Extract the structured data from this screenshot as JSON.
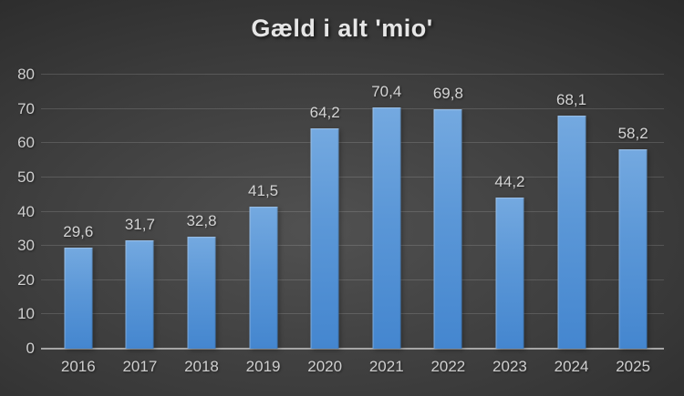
{
  "chart_data": {
    "type": "bar",
    "title": "Gæld i alt 'mio'",
    "categories": [
      "2016",
      "2017",
      "2018",
      "2019",
      "2020",
      "2021",
      "2022",
      "2023",
      "2024",
      "2025"
    ],
    "values": [
      29.6,
      31.7,
      32.8,
      41.5,
      64.2,
      70.4,
      69.8,
      44.2,
      68.1,
      58.2
    ],
    "data_labels": [
      "29,6",
      "31,7",
      "32,8",
      "41,5",
      "64,2",
      "70,4",
      "69,8",
      "44,2",
      "68,1",
      "58,2"
    ],
    "xlabel": "",
    "ylabel": "",
    "ylim": [
      0,
      80
    ],
    "yticks": [
      0,
      10,
      20,
      30,
      40,
      50,
      60,
      70,
      80
    ],
    "ytick_labels": [
      "0",
      "10",
      "20",
      "30",
      "40",
      "50",
      "60",
      "70",
      "80"
    ],
    "grid": true,
    "legend": "none",
    "decimal_separator": ",",
    "colors": {
      "bar_top": "#74a9e0",
      "bar_mid": "#5b97d7",
      "bar_bottom": "#4486cf",
      "background_center": "#515151",
      "background_edge": "#262626",
      "gridline": "#5a5a5a",
      "axis_line": "#a6a6a6",
      "label_text": "#d4d4d4",
      "title_text": "#e6e6e6"
    }
  }
}
